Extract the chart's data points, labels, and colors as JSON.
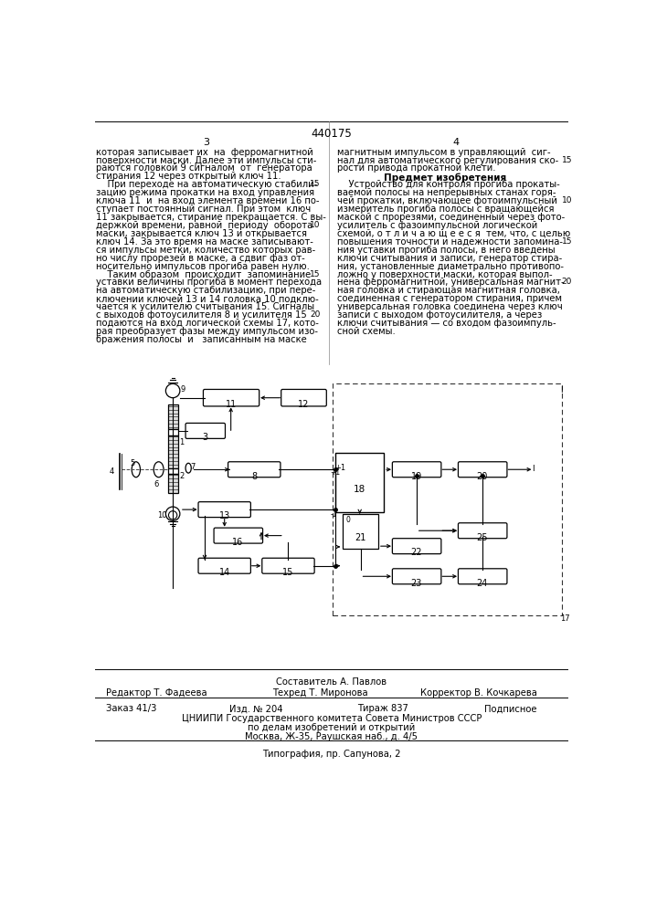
{
  "page_number_center": "440175",
  "col_left_num": "3",
  "col_right_num": "4",
  "bg_color": "#ffffff",
  "text_color": "#000000",
  "left_column_text": [
    "которая записывает их  на  ферромагнитной",
    "поверхности маски. Далее эти импульсы сти-",
    "раются головкой 9 сигналом  от  генератора",
    "стирания 12 через открытый ключ 11.",
    "    При переходе на автоматическую стабили-",
    "зацию режима прокатки на вход управления",
    "ключа 11  и  на вход элемента времени 16 по-",
    "ступает постоянный сигнал. При этом  ключ",
    "11 закрывается, стирание прекращается. С вы-",
    "держкой времени, равной  периоду  оборота",
    "маски, закрывается ключ 13 и открывается",
    "ключ 14. За это время на маске записывают-",
    "ся импульсы метки, количество которых рав-",
    "но числу прорезей в маске, а сдвиг фаз от-",
    "носительно импульсов прогиба равен нулю.",
    "    Таким образом  происходит  запоминание",
    "уставки величины прогиба в момент перехода",
    "на автоматическую стабилизацию, при пере-",
    "ключении ключей 13 и 14 головка 10 подклю-",
    "чается к усилителю считывания 15. Сигналы",
    "с выходов фотоусилителя 8 и усилителя 15",
    "подаются на вход логической схемы 17, кото-",
    "рая преобразует фазы между импульсом изо-",
    "бражения полосы  и   записанным на маске"
  ],
  "right_column_text": [
    "магнитным импульсом в управляющий  сиг-",
    "нал для автоматического регулирования ско-",
    "рости привода прокатной клети.",
    "Предмет изобретения",
    "    Устройство для контроля прогиба прокаты-",
    "ваемой полосы на непрерывных станах горя-",
    "чей прокатки, включающее фотоимпульсный",
    "измеритель прогиба полосы с вращающейся",
    "маской с прорезями, соединенный через фото-",
    "усилитель с фазоимпульсной логической",
    "схемой, о т л и ч а ю щ е е с я  тем, что, с целью",
    "повышения точности и надежности запомина-",
    "ния уставки прогиба полосы, в него введены",
    "ключи считывания и записи, генератор стира-",
    "ния, установленные диаметрально противопо-",
    "ложно у поверхности маски, которая выпол-",
    "нена ферромагнитной, универсальная магнит-",
    "ная головка и стирающая магнитная головка,",
    "соединенная с генератором стирания, причем",
    "универсальная головка соединена через ключ",
    "записи с выходом фотоусилителя, а через",
    "ключи считывания — со входом фазоимпуль-",
    "сной схемы."
  ],
  "footer_line1": "Составитель А. Павлов",
  "footer_editor": "Редактор Т. Фадеева",
  "footer_techred": "Техред Т. Миронова",
  "footer_corrector": "Корректор В. Кочкарева",
  "footer_order": "Заказ 41/3",
  "footer_izd": "Изд. № 204",
  "footer_tirazh": "Тираж 837",
  "footer_podpisnoe": "Подписное",
  "footer_cniip": "ЦНИИПИ Государственного комитета Совета Министров СССР",
  "footer_address1": "по делам изобретений и открытий",
  "footer_address2": "Москва, Ж-35, Раушская наб., д. 4/5",
  "footer_tipografia": "Типография, пр. Сапунова, 2"
}
